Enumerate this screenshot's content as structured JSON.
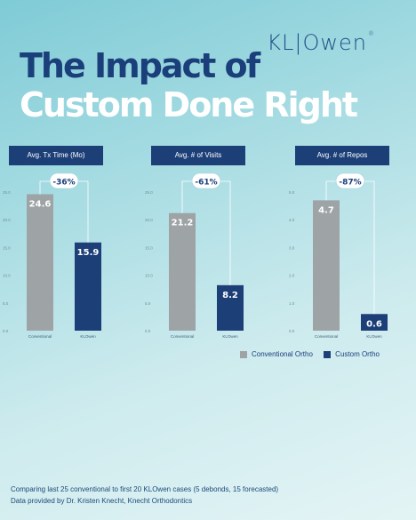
{
  "brand": {
    "logo_text": "KL|Owen",
    "reg": "®"
  },
  "headline": {
    "line1": "The Impact of",
    "line2": "Custom Done Right"
  },
  "colors": {
    "conventional": "#9ea3a6",
    "custom": "#1c3f78",
    "accent_navy": "#1c3f78"
  },
  "chart_data": [
    {
      "type": "bar",
      "title": "Avg. Tx Time (Mo)",
      "categories": [
        "Conventional",
        "KLOwen"
      ],
      "values": [
        24.6,
        15.9
      ],
      "yticks": [
        "0.0",
        "5.0",
        "10.0",
        "15.0",
        "20.0",
        "25.0"
      ],
      "ylim": [
        0,
        25
      ],
      "change": "-36%"
    },
    {
      "type": "bar",
      "title": "Avg. # of Visits",
      "categories": [
        "Conventional",
        "KLOwen"
      ],
      "values": [
        21.2,
        8.2
      ],
      "yticks": [
        "0.0",
        "5.0",
        "10.0",
        "15.0",
        "20.0",
        "25.0"
      ],
      "ylim": [
        0,
        25
      ],
      "change": "-61%"
    },
    {
      "type": "bar",
      "title": "Avg. # of Repos",
      "categories": [
        "Conventional",
        "KLOwen"
      ],
      "values": [
        4.7,
        0.6
      ],
      "yticks": [
        "0.0",
        "1.0",
        "2.0",
        "3.0",
        "4.0",
        "5.0"
      ],
      "ylim": [
        0,
        5
      ],
      "change": "-87%"
    }
  ],
  "legend": [
    "Conventional Ortho",
    "Custom Ortho"
  ],
  "footer": {
    "line1": "Comparing last 25 conventional to first 20 KLOwen cases (5 debonds, 15 forecasted)",
    "line2": "Data provided by Dr. Kristen Knecht, Knecht Orthodontics"
  }
}
